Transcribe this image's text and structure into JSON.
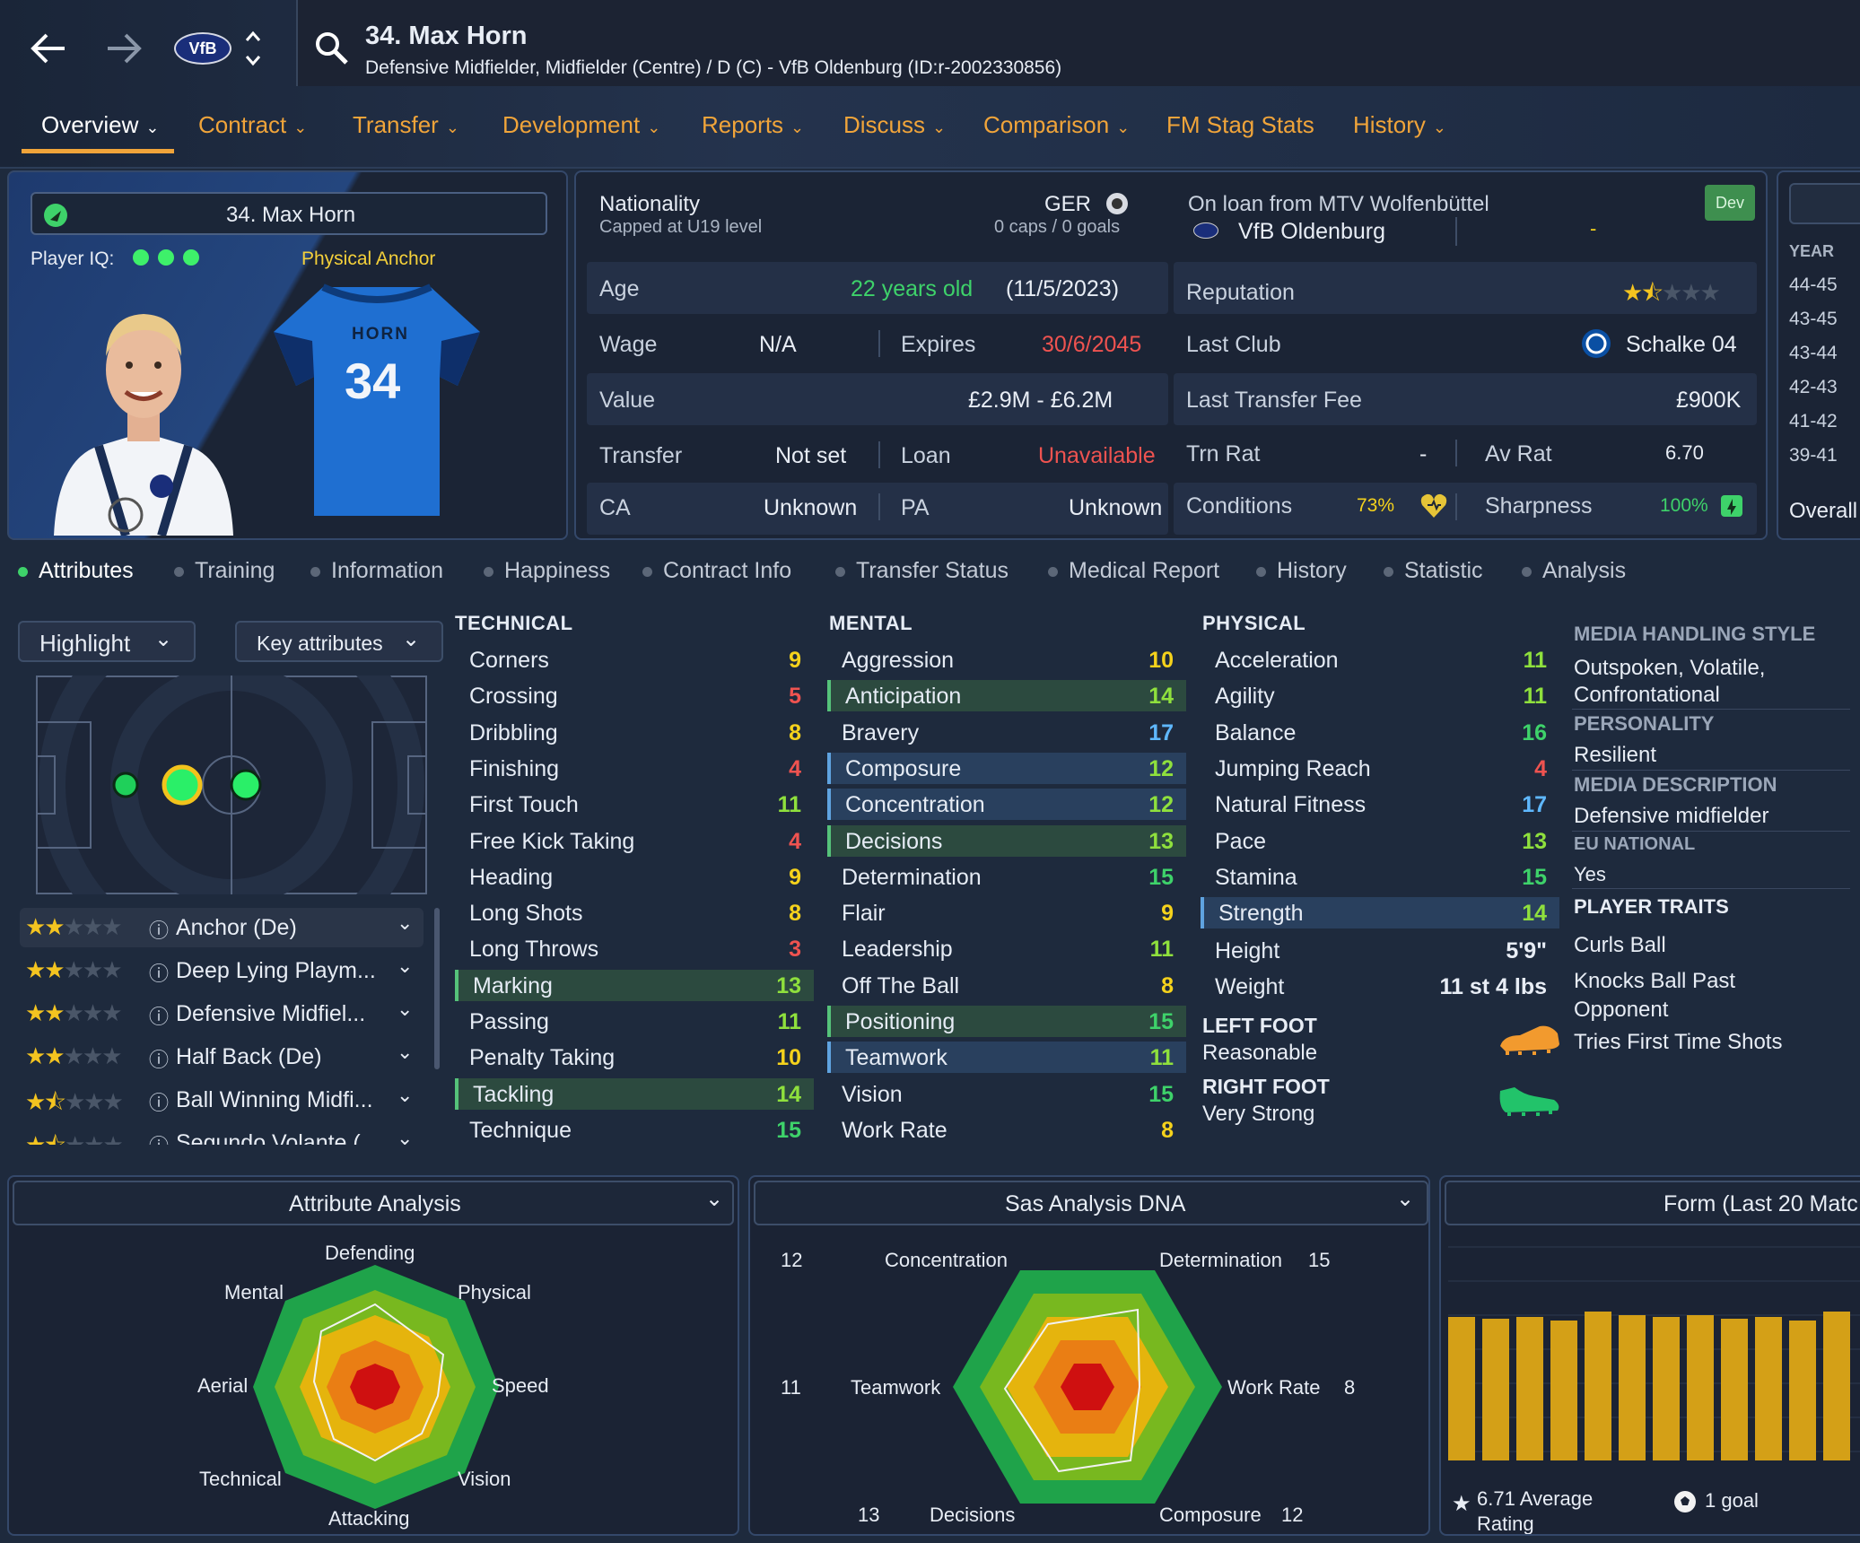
{
  "header": {
    "title": "34. Max Horn",
    "subtitle": "Defensive Midfielder, Midfielder (Centre) / D (C) - VfB Oldenburg (ID:r-2002330856)",
    "club_badge_text": "VfB",
    "tabs": [
      {
        "label": "Overview"
      },
      {
        "label": "Contract"
      },
      {
        "label": "Transfer"
      },
      {
        "label": "Development"
      },
      {
        "label": "Reports"
      },
      {
        "label": "Discuss"
      },
      {
        "label": "Comparison"
      },
      {
        "label": "FM Stag Stats"
      },
      {
        "label": "History"
      }
    ]
  },
  "card": {
    "name": "34. Max Horn",
    "iq_label": "Player IQ:",
    "role_tag": "Physical Anchor",
    "shirt_name": "HORN",
    "shirt_number": "34"
  },
  "info": {
    "nationality_label": "Nationality",
    "nationality_value": "GER",
    "capped": "Capped at U19 level",
    "caps": "0 caps / 0 goals",
    "loan_from": "On loan from MTV Wolfenbüttel",
    "loan_club": "VfB Oldenburg",
    "loan_dash": "-",
    "dev_badge": "Dev",
    "age_label": "Age",
    "age_value": "22 years old",
    "dob": "(11/5/2023)",
    "wage_label": "Wage",
    "wage_value": "N/A",
    "expires_label": "Expires",
    "expires_value": "30/6/2045",
    "value_label": "Value",
    "value_value": "£2.9M - £6.2M",
    "transfer_label": "Transfer",
    "transfer_value": "Not set",
    "loan_label": "Loan",
    "loan_value": "Unavailable",
    "ca_label": "CA",
    "ca_value": "Unknown",
    "pa_label": "PA",
    "pa_value": "Unknown",
    "reputation_label": "Reputation",
    "reputation_stars": 1.5,
    "last_club_label": "Last Club",
    "last_club_value": "Schalke 04",
    "ltf_label": "Last Transfer Fee",
    "ltf_value": "£900K",
    "trn_label": "Trn Rat",
    "trn_value": "-",
    "avrat_label": "Av Rat",
    "avrat_value": "6.70",
    "cond_label": "Conditions",
    "cond_value": "73%",
    "sharp_label": "Sharpness",
    "sharp_value": "100%"
  },
  "history_panel": {
    "year_label": "YEAR",
    "years": [
      "44-45",
      "43-45",
      "43-44",
      "42-43",
      "41-42",
      "39-41"
    ],
    "overall_label": "Overall"
  },
  "subtabs": [
    "Attributes",
    "Training",
    "Information",
    "Happiness",
    "Contract Info",
    "Transfer Status",
    "Medical Report",
    "History",
    "Statistic",
    "Analysis"
  ],
  "controls": {
    "highlight": "Highlight",
    "key_attrs": "Key attributes"
  },
  "roles": [
    {
      "name": "Anchor (De)",
      "stars": 2
    },
    {
      "name": "Deep Lying Playm...",
      "stars": 2
    },
    {
      "name": "Defensive Midfiel...",
      "stars": 2
    },
    {
      "name": "Half Back (De)",
      "stars": 2
    },
    {
      "name": "Ball Winning Midfi...",
      "stars": 1.5
    },
    {
      "name": "Segundo Volante (",
      "stars": 1.5
    }
  ],
  "technical": {
    "title": "TECHNICAL",
    "items": [
      {
        "name": "Corners",
        "value": "9"
      },
      {
        "name": "Crossing",
        "value": "5"
      },
      {
        "name": "Dribbling",
        "value": "8"
      },
      {
        "name": "Finishing",
        "value": "4"
      },
      {
        "name": "First Touch",
        "value": "11"
      },
      {
        "name": "Free Kick Taking",
        "value": "4"
      },
      {
        "name": "Heading",
        "value": "9"
      },
      {
        "name": "Long Shots",
        "value": "8"
      },
      {
        "name": "Long Throws",
        "value": "3"
      },
      {
        "name": "Marking",
        "value": "13"
      },
      {
        "name": "Passing",
        "value": "11"
      },
      {
        "name": "Penalty Taking",
        "value": "10"
      },
      {
        "name": "Tackling",
        "value": "14"
      },
      {
        "name": "Technique",
        "value": "15"
      }
    ]
  },
  "mental": {
    "title": "MENTAL",
    "items": [
      {
        "name": "Aggression",
        "value": "10"
      },
      {
        "name": "Anticipation",
        "value": "14"
      },
      {
        "name": "Bravery",
        "value": "17"
      },
      {
        "name": "Composure",
        "value": "12"
      },
      {
        "name": "Concentration",
        "value": "12"
      },
      {
        "name": "Decisions",
        "value": "13"
      },
      {
        "name": "Determination",
        "value": "15"
      },
      {
        "name": "Flair",
        "value": "9"
      },
      {
        "name": "Leadership",
        "value": "11"
      },
      {
        "name": "Off The Ball",
        "value": "8"
      },
      {
        "name": "Positioning",
        "value": "15"
      },
      {
        "name": "Teamwork",
        "value": "11"
      },
      {
        "name": "Vision",
        "value": "15"
      },
      {
        "name": "Work Rate",
        "value": "8"
      }
    ]
  },
  "physical": {
    "title": "PHYSICAL",
    "items": [
      {
        "name": "Acceleration",
        "value": "11"
      },
      {
        "name": "Agility",
        "value": "11"
      },
      {
        "name": "Balance",
        "value": "16"
      },
      {
        "name": "Jumping Reach",
        "value": "4"
      },
      {
        "name": "Natural Fitness",
        "value": "17"
      },
      {
        "name": "Pace",
        "value": "13"
      },
      {
        "name": "Stamina",
        "value": "15"
      },
      {
        "name": "Strength",
        "value": "14"
      }
    ],
    "height_label": "Height",
    "height_value": "5'9\"",
    "weight_label": "Weight",
    "weight_value": "11 st 4 lbs",
    "left_foot_label": "LEFT FOOT",
    "left_foot_value": "Reasonable",
    "right_foot_label": "RIGHT FOOT",
    "right_foot_value": "Very Strong"
  },
  "media": {
    "style_label": "MEDIA HANDLING STYLE",
    "style_value": "Outspoken, Volatile, Confrontational",
    "personality_label": "PERSONALITY",
    "personality_value": "Resilient",
    "desc_label": "MEDIA DESCRIPTION",
    "desc_value": "Defensive midfielder",
    "eu_label": "EU NATIONAL",
    "eu_value": "Yes",
    "traits_label": "PLAYER TRAITS",
    "traits": [
      "Curls Ball",
      "Knocks Ball Past Opponent",
      "Tries First Time Shots"
    ]
  },
  "attr_analysis": {
    "title": "Attribute Analysis",
    "labels": [
      "Defending",
      "Physical",
      "Speed",
      "Vision",
      "Attacking",
      "Technical",
      "Aerial",
      "Mental"
    ]
  },
  "dna": {
    "title": "Sas Analysis DNA",
    "labels": [
      {
        "name": "Concentration",
        "value": "12"
      },
      {
        "name": "Determination",
        "value": "15"
      },
      {
        "name": "Work Rate",
        "value": "8"
      },
      {
        "name": "Composure",
        "value": "12"
      },
      {
        "name": "Decisions",
        "value": "13"
      },
      {
        "name": "Teamwork",
        "value": "11"
      }
    ]
  },
  "form": {
    "title": "Form (Last 20 Matc",
    "avg": "6.71 Average",
    "avg2": "Rating",
    "goals": "1 goal"
  },
  "colors": {
    "accent": "#f0a43a",
    "green": "#3ed26a",
    "red": "#ef5350",
    "gold": "#d4a017"
  }
}
